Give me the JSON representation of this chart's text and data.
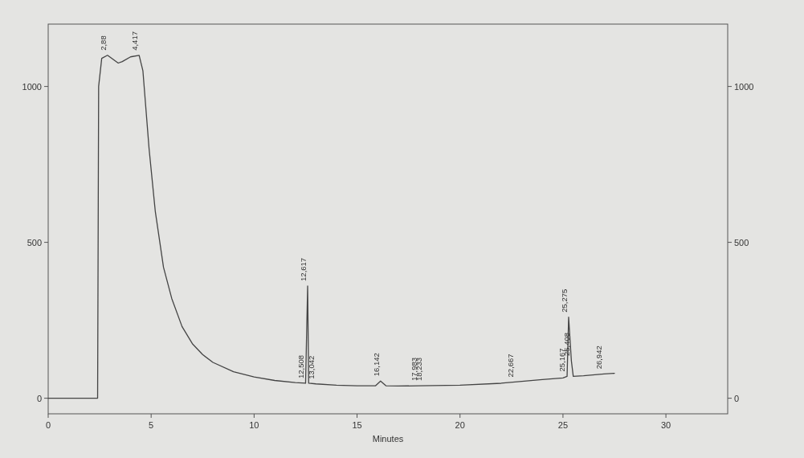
{
  "chart_data": {
    "type": "line",
    "xlabel": "Minutes",
    "xlim": [
      0,
      33
    ],
    "xticks": [
      0,
      5,
      10,
      15,
      20,
      25,
      30
    ],
    "ylim": [
      -50,
      1200
    ],
    "yticks": [
      0,
      500,
      1000
    ],
    "y2lim": [
      -50,
      1200
    ],
    "y2ticks": [
      0,
      500,
      1000
    ],
    "grid": false,
    "marker": "none",
    "line_style": "solid",
    "series": [
      {
        "color": "#444444",
        "x": [
          0,
          2.4,
          2.45,
          2.6,
          2.88,
          3.4,
          3.6,
          4.0,
          4.417,
          4.6,
          4.9,
          5.2,
          5.6,
          6,
          6.5,
          7,
          7.5,
          8,
          9,
          10,
          11,
          12,
          12.5,
          12.6,
          12.65,
          13,
          14,
          15,
          15.9,
          16.142,
          16.4,
          17,
          18,
          20,
          22,
          22.667,
          24,
          25,
          25.2,
          25.275,
          25.408,
          25.5,
          26,
          27,
          27.5
        ],
        "values": [
          0,
          0,
          1000,
          1090,
          1100,
          1075,
          1080,
          1095,
          1100,
          1050,
          800,
          600,
          420,
          320,
          230,
          175,
          140,
          115,
          85,
          68,
          57,
          50,
          48,
          360,
          48,
          46,
          42,
          40,
          40,
          55,
          40,
          39,
          40,
          42,
          48,
          52,
          60,
          65,
          70,
          260,
          120,
          70,
          72,
          78,
          80
        ]
      }
    ],
    "annotations": [
      {
        "text": "2,88",
        "x": 2.88,
        "y": 1100
      },
      {
        "text": "4,417",
        "x": 4.417,
        "y": 1100
      },
      {
        "text": "12,508",
        "x": 12.5,
        "y": 48
      },
      {
        "text": "12,617",
        "x": 12.6,
        "y": 360
      },
      {
        "text": "13,042",
        "x": 13,
        "y": 46
      },
      {
        "text": "16,142",
        "x": 16.142,
        "y": 55
      },
      {
        "text": "17,983",
        "x": 17.983,
        "y": 40
      },
      {
        "text": "18,233",
        "x": 18.233,
        "y": 40
      },
      {
        "text": "22,667",
        "x": 22.667,
        "y": 52
      },
      {
        "text": "25,167",
        "x": 25.167,
        "y": 70
      },
      {
        "text": "25,275",
        "x": 25.275,
        "y": 260
      },
      {
        "text": "25,408",
        "x": 25.408,
        "y": 120
      },
      {
        "text": "26,942",
        "x": 26.942,
        "y": 78
      }
    ]
  }
}
